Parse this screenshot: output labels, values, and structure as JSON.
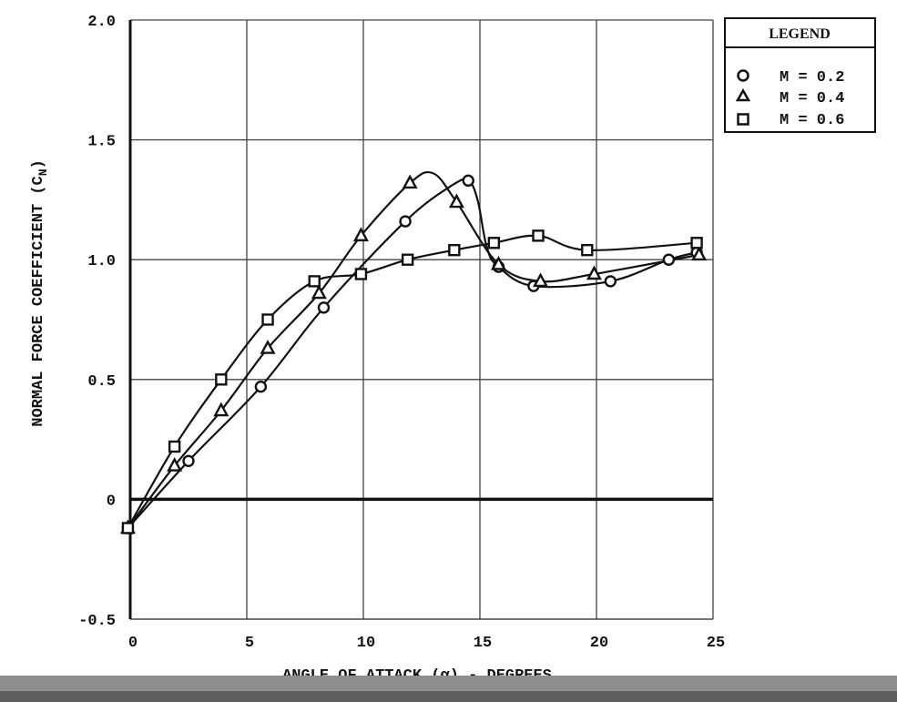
{
  "chart_data": {
    "type": "line",
    "x_label": "ANGLE OF ATTACK (α) - DEGREES",
    "y_label_main": "NORMAL FORCE COEFFICIENT (C",
    "y_label_sub": "N",
    "y_label_close": ")",
    "xlim": [
      0,
      25
    ],
    "ylim": [
      -0.5,
      2.0
    ],
    "x_ticks": [
      0,
      5,
      10,
      15,
      20,
      25
    ],
    "y_ticks": [
      -0.5,
      0,
      0.5,
      1.0,
      1.5,
      2.0
    ],
    "x_tick_labels": [
      "0",
      "5",
      "10",
      "15",
      "20",
      "25"
    ],
    "y_tick_labels": [
      "-0.5",
      "0",
      "0.5",
      "1.0",
      "1.5",
      "2.0"
    ],
    "grid": true,
    "legend": {
      "title": "LEGEND",
      "position": "top-right, outside plot",
      "entries": [
        {
          "marker": "circle",
          "label": "M = 0.2"
        },
        {
          "marker": "triangle",
          "label": "M = 0.4"
        },
        {
          "marker": "square",
          "label": "M = 0.6"
        }
      ]
    },
    "series": [
      {
        "name": "M = 0.2",
        "marker": "circle",
        "points": [
          [
            -0.1,
            -0.12
          ],
          [
            2.5,
            0.16
          ],
          [
            5.6,
            0.47
          ],
          [
            8.3,
            0.8
          ],
          [
            11.8,
            1.16
          ],
          [
            14.5,
            1.33
          ],
          [
            15.8,
            0.97
          ],
          [
            17.3,
            0.89
          ],
          [
            20.6,
            0.91
          ],
          [
            23.1,
            1.0
          ],
          [
            24.3,
            1.03
          ]
        ],
        "curve": [
          [
            -0.1,
            -0.12
          ],
          [
            2.5,
            0.16
          ],
          [
            5.6,
            0.47
          ],
          [
            8.3,
            0.8
          ],
          [
            11.8,
            1.16
          ],
          [
            13.8,
            1.31
          ],
          [
            14.5,
            1.33
          ],
          [
            14.9,
            1.25
          ],
          [
            15.3,
            1.05
          ],
          [
            15.8,
            0.97
          ],
          [
            17.3,
            0.89
          ],
          [
            20.6,
            0.91
          ],
          [
            23.1,
            1.0
          ],
          [
            24.3,
            1.03
          ]
        ]
      },
      {
        "name": "M = 0.4",
        "marker": "triangle",
        "points": [
          [
            -0.1,
            -0.12
          ],
          [
            1.9,
            0.14
          ],
          [
            3.9,
            0.37
          ],
          [
            5.9,
            0.63
          ],
          [
            8.1,
            0.86
          ],
          [
            9.9,
            1.1
          ],
          [
            12.0,
            1.32
          ],
          [
            14.0,
            1.24
          ],
          [
            15.8,
            0.98
          ],
          [
            17.6,
            0.91
          ],
          [
            19.9,
            0.94
          ],
          [
            24.4,
            1.02
          ]
        ],
        "curve": [
          [
            -0.1,
            -0.12
          ],
          [
            1.9,
            0.14
          ],
          [
            3.9,
            0.37
          ],
          [
            5.9,
            0.63
          ],
          [
            8.1,
            0.86
          ],
          [
            9.9,
            1.1
          ],
          [
            12.0,
            1.32
          ],
          [
            13.0,
            1.36
          ],
          [
            14.0,
            1.24
          ],
          [
            15.8,
            0.98
          ],
          [
            17.6,
            0.91
          ],
          [
            19.9,
            0.94
          ],
          [
            24.4,
            1.02
          ]
        ]
      },
      {
        "name": "M = 0.6",
        "marker": "square",
        "points": [
          [
            -0.1,
            -0.12
          ],
          [
            1.9,
            0.22
          ],
          [
            3.9,
            0.5
          ],
          [
            5.9,
            0.75
          ],
          [
            7.9,
            0.91
          ],
          [
            9.9,
            0.94
          ],
          [
            11.9,
            1.0
          ],
          [
            13.9,
            1.04
          ],
          [
            15.6,
            1.07
          ],
          [
            17.5,
            1.1
          ],
          [
            19.6,
            1.04
          ],
          [
            24.3,
            1.07
          ]
        ],
        "curve": [
          [
            -0.1,
            -0.12
          ],
          [
            1.9,
            0.22
          ],
          [
            3.9,
            0.5
          ],
          [
            5.9,
            0.75
          ],
          [
            7.9,
            0.91
          ],
          [
            9.9,
            0.94
          ],
          [
            11.9,
            1.0
          ],
          [
            13.9,
            1.04
          ],
          [
            15.6,
            1.07
          ],
          [
            17.5,
            1.1
          ],
          [
            19.6,
            1.04
          ],
          [
            24.3,
            1.07
          ]
        ]
      }
    ]
  }
}
